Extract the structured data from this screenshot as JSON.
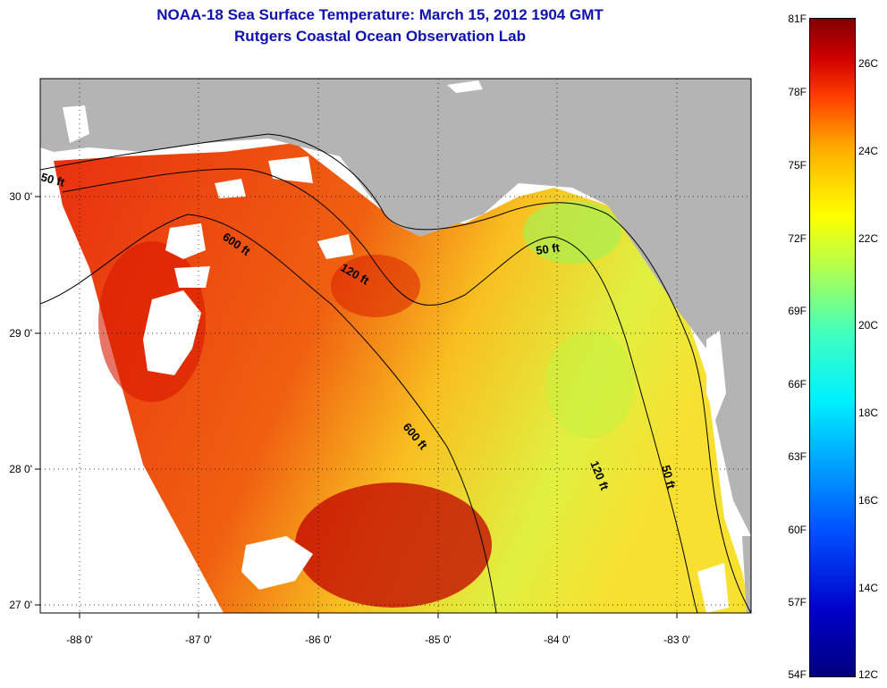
{
  "header": {
    "title_line1": "NOAA-18 Sea Surface Temperature:  March 15, 2012 1904 GMT",
    "title_line2": "Rutgers Coastal Ocean Observation Lab",
    "title_color": "#1010b0"
  },
  "map": {
    "longitude_ticks": [
      "-88 0'",
      "-87 0'",
      "-86 0'",
      "-85 0'",
      "-84 0'",
      "-83 0'"
    ],
    "latitude_ticks": [
      "30 0'",
      "29 0'",
      "28 0'",
      "27 0'"
    ],
    "contour_labels": [
      "50 ft",
      "600 ft",
      "120 ft",
      "50 ft",
      "600 ft",
      "120 ft",
      "50 ft"
    ],
    "land_color": "#b4b4b4",
    "cloud_color": "#ffffff"
  },
  "colorbar": {
    "fahrenheit_labels": [
      "81F",
      "78F",
      "75F",
      "72F",
      "69F",
      "66F",
      "63F",
      "60F",
      "57F",
      "54F"
    ],
    "celsius_labels": [
      "26C",
      "24C",
      "22C",
      "20C",
      "18C",
      "16C",
      "14C",
      "12C"
    ]
  }
}
